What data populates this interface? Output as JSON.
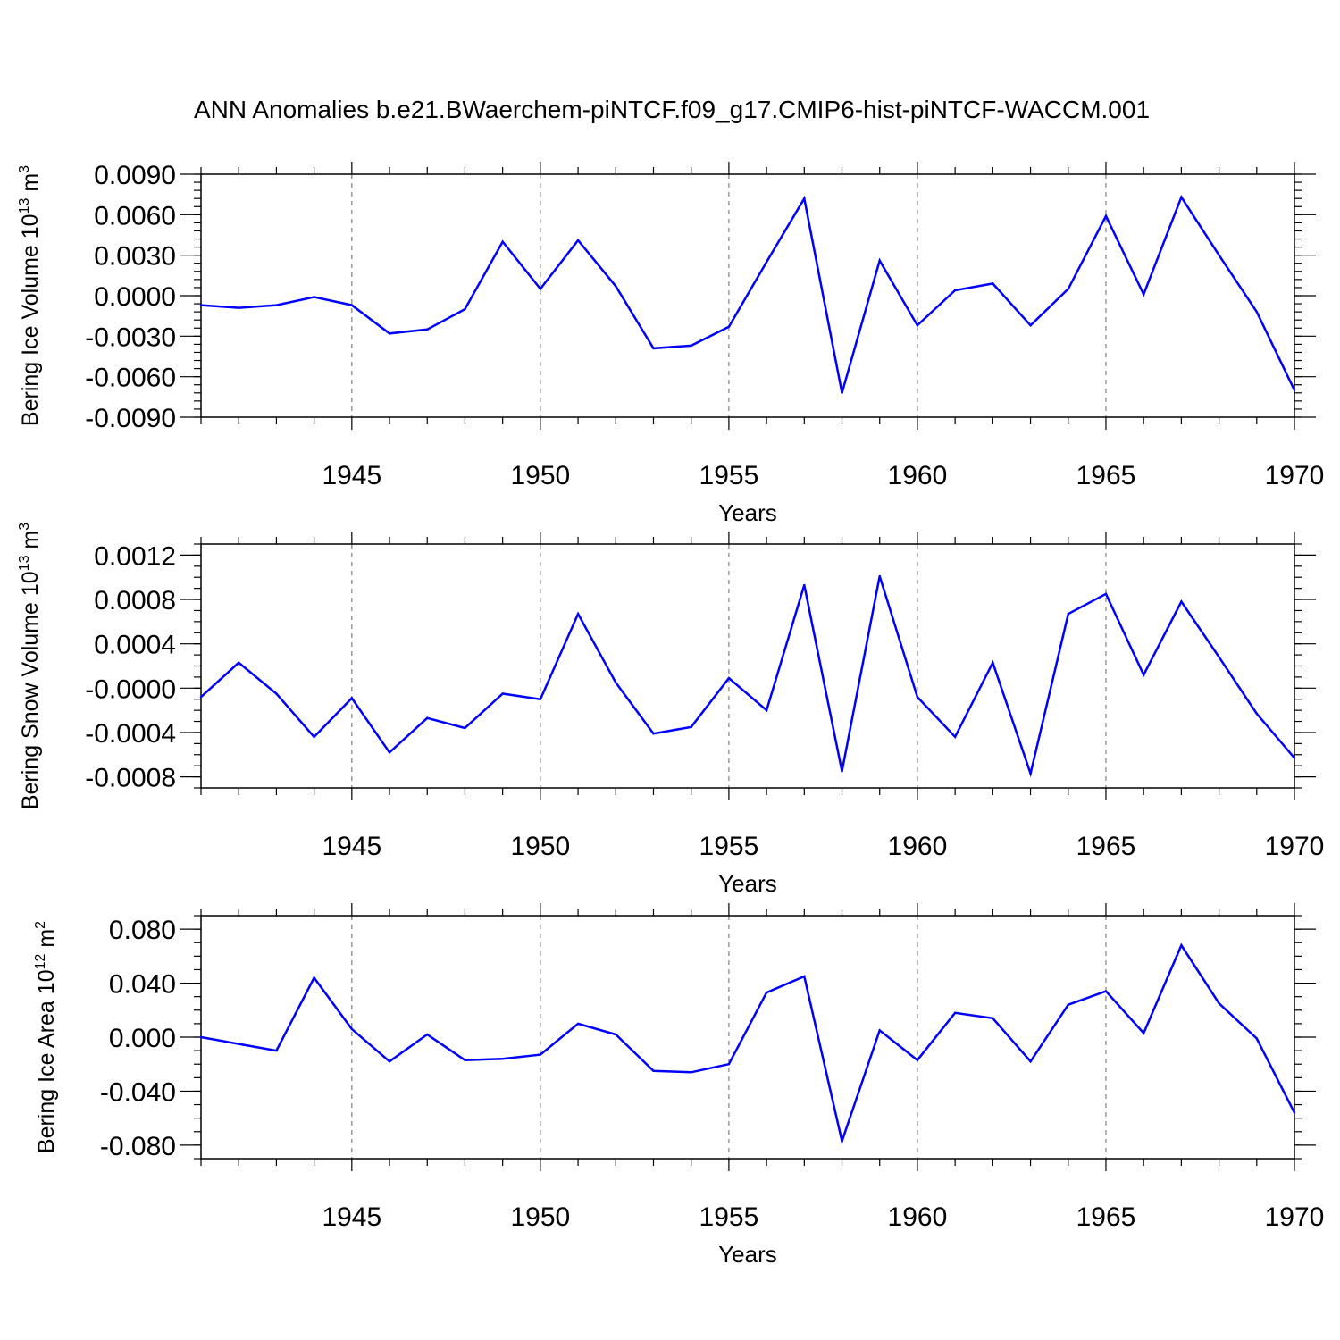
{
  "figure_title": "ANN Anomalies b.e21.BWaerchem-piNTCF.f09_g17.CMIP6-hist-piNTCF-WACCM.001",
  "colors": {
    "line": "#0000ff",
    "axis": "#000000",
    "grid": "#808080",
    "background": "#ffffff"
  },
  "chart_data": [
    {
      "type": "line",
      "title": "",
      "ylabel": "Bering Ice Volume 10",
      "ylabel_exponent": "13",
      "ylabel_unit": "m",
      "ylabel_unit_exponent": "3",
      "xlabel": "Years",
      "xlim": [
        1941,
        1970
      ],
      "ylim": [
        -0.009,
        0.009
      ],
      "xticks": [
        "1945",
        "1950",
        "1955",
        "1960",
        "1965",
        "1970"
      ],
      "yticks": [
        {
          "value": 0.009,
          "label": "0.0090"
        },
        {
          "value": 0.006,
          "label": "0.0060"
        },
        {
          "value": 0.003,
          "label": "0.0030"
        },
        {
          "value": 0.0,
          "label": "0.0000"
        },
        {
          "value": -0.003,
          "label": "-0.0030"
        },
        {
          "value": -0.006,
          "label": "-0.0060"
        },
        {
          "value": -0.009,
          "label": "-0.0090"
        }
      ],
      "grid": "vertical dashed at major x ticks",
      "series": [
        {
          "name": "Bering Ice Volume",
          "x": [
            1941,
            1942,
            1943,
            1944,
            1945,
            1946,
            1947,
            1948,
            1949,
            1950,
            1951,
            1952,
            1953,
            1954,
            1955,
            1956,
            1957,
            1958,
            1959,
            1960,
            1961,
            1962,
            1963,
            1964,
            1965,
            1966,
            1967,
            1968,
            1969,
            1970
          ],
          "values": [
            -0.0007,
            -0.0009,
            -0.0007,
            -0.0001,
            -0.0007,
            -0.0028,
            -0.0025,
            -0.001,
            0.004,
            0.0005,
            0.0041,
            0.0007,
            -0.0039,
            -0.0037,
            -0.0023,
            0.0025,
            0.0072,
            -0.0072,
            0.0026,
            -0.0022,
            0.0004,
            0.0009,
            -0.0022,
            0.0005,
            0.0059,
            0.0001,
            0.0073,
            0.003,
            -0.0012,
            -0.007
          ]
        }
      ]
    },
    {
      "type": "line",
      "title": "",
      "ylabel": "Bering Snow Volume 10",
      "ylabel_exponent": "13",
      "ylabel_unit": "m",
      "ylabel_unit_exponent": "3",
      "xlabel": "Years",
      "xlim": [
        1941,
        1970
      ],
      "ylim": [
        -0.0009,
        0.0013
      ],
      "xticks": [
        "1945",
        "1950",
        "1955",
        "1960",
        "1965",
        "1970"
      ],
      "yticks": [
        {
          "value": 0.0012,
          "label": "0.0012"
        },
        {
          "value": 0.0008,
          "label": "0.0008"
        },
        {
          "value": 0.0004,
          "label": "0.0004"
        },
        {
          "value": 0.0,
          "label": "-0.0000"
        },
        {
          "value": -0.0004,
          "label": "-0.0004"
        },
        {
          "value": -0.0008,
          "label": "-0.0008"
        }
      ],
      "grid": "vertical dashed at major x ticks",
      "series": [
        {
          "name": "Bering Snow Volume",
          "x": [
            1941,
            1942,
            1943,
            1944,
            1945,
            1946,
            1947,
            1948,
            1949,
            1950,
            1951,
            1952,
            1953,
            1954,
            1955,
            1956,
            1957,
            1958,
            1959,
            1960,
            1961,
            1962,
            1963,
            1964,
            1965,
            1966,
            1967,
            1968,
            1969,
            1970
          ],
          "values": [
            -8e-05,
            0.00023,
            -5e-05,
            -0.00044,
            -9e-05,
            -0.00058,
            -0.00027,
            -0.00036,
            -5e-05,
            -0.0001,
            0.00067,
            5e-05,
            -0.00041,
            -0.00035,
            9e-05,
            -0.0002,
            0.00093,
            -0.00075,
            0.00101,
            -8e-05,
            -0.00044,
            0.00023,
            -0.00077,
            0.00067,
            0.00085,
            0.00012,
            0.00078,
            0.00028,
            -0.00023,
            -0.00063
          ]
        }
      ]
    },
    {
      "type": "line",
      "title": "",
      "ylabel": "Bering Ice Area 10",
      "ylabel_exponent": "12",
      "ylabel_unit": "m",
      "ylabel_unit_exponent": "2",
      "xlabel": "Years",
      "xlim": [
        1941,
        1970
      ],
      "ylim": [
        -0.09,
        0.09
      ],
      "xticks": [
        "1945",
        "1950",
        "1955",
        "1960",
        "1965",
        "1970"
      ],
      "yticks": [
        {
          "value": 0.08,
          "label": "0.080"
        },
        {
          "value": 0.04,
          "label": "0.040"
        },
        {
          "value": 0.0,
          "label": "0.000"
        },
        {
          "value": -0.04,
          "label": "-0.040"
        },
        {
          "value": -0.08,
          "label": "-0.080"
        }
      ],
      "grid": "vertical dashed at major x ticks",
      "series": [
        {
          "name": "Bering Ice Area",
          "x": [
            1941,
            1942,
            1943,
            1944,
            1945,
            1946,
            1947,
            1948,
            1949,
            1950,
            1951,
            1952,
            1953,
            1954,
            1955,
            1956,
            1957,
            1958,
            1959,
            1960,
            1961,
            1962,
            1963,
            1964,
            1965,
            1966,
            1967,
            1968,
            1969,
            1970
          ],
          "values": [
            0.0,
            -0.005,
            -0.01,
            0.044,
            0.006,
            -0.018,
            0.002,
            -0.017,
            -0.016,
            -0.013,
            0.01,
            0.002,
            -0.025,
            -0.026,
            -0.02,
            0.033,
            0.045,
            -0.077,
            0.005,
            -0.017,
            0.018,
            0.014,
            -0.018,
            0.024,
            0.034,
            0.003,
            0.068,
            0.025,
            -0.001,
            -0.056
          ]
        }
      ]
    }
  ]
}
